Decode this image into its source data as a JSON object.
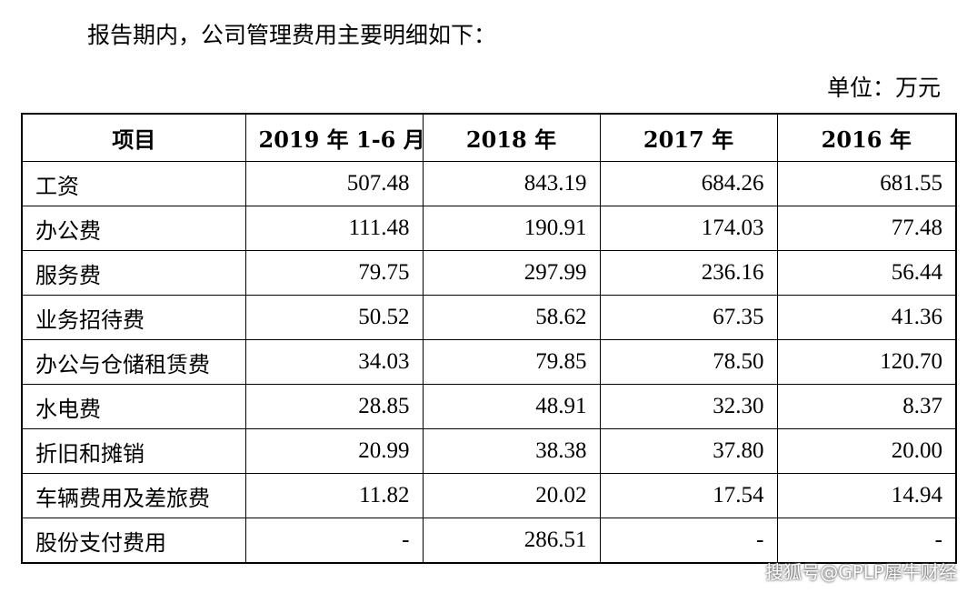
{
  "intro": "报告期内，公司管理费用主要明细如下：",
  "unit": "单位：万元",
  "table": {
    "headers": [
      "项目",
      "2019 年 1-6 月",
      "2018 年",
      "2017 年",
      "2016 年"
    ],
    "rows": [
      {
        "item": "工资",
        "v2019h1": "507.48",
        "v2018": "843.19",
        "v2017": "684.26",
        "v2016": "681.55"
      },
      {
        "item": "办公费",
        "v2019h1": "111.48",
        "v2018": "190.91",
        "v2017": "174.03",
        "v2016": "77.48"
      },
      {
        "item": "服务费",
        "v2019h1": "79.75",
        "v2018": "297.99",
        "v2017": "236.16",
        "v2016": "56.44"
      },
      {
        "item": "业务招待费",
        "v2019h1": "50.52",
        "v2018": "58.62",
        "v2017": "67.35",
        "v2016": "41.36"
      },
      {
        "item": "办公与仓储租赁费",
        "v2019h1": "34.03",
        "v2018": "79.85",
        "v2017": "78.50",
        "v2016": "120.70"
      },
      {
        "item": "水电费",
        "v2019h1": "28.85",
        "v2018": "48.91",
        "v2017": "32.30",
        "v2016": "8.37"
      },
      {
        "item": "折旧和摊销",
        "v2019h1": "20.99",
        "v2018": "38.38",
        "v2017": "37.80",
        "v2016": "20.00"
      },
      {
        "item": "车辆费用及差旅费",
        "v2019h1": "11.82",
        "v2018": "20.02",
        "v2017": "17.54",
        "v2016": "14.94"
      },
      {
        "item": "股份支付费用",
        "v2019h1": "-",
        "v2018": "286.51",
        "v2017": "-",
        "v2016": "-"
      }
    ]
  },
  "watermark": "搜狐号@GPLP犀牛财经"
}
